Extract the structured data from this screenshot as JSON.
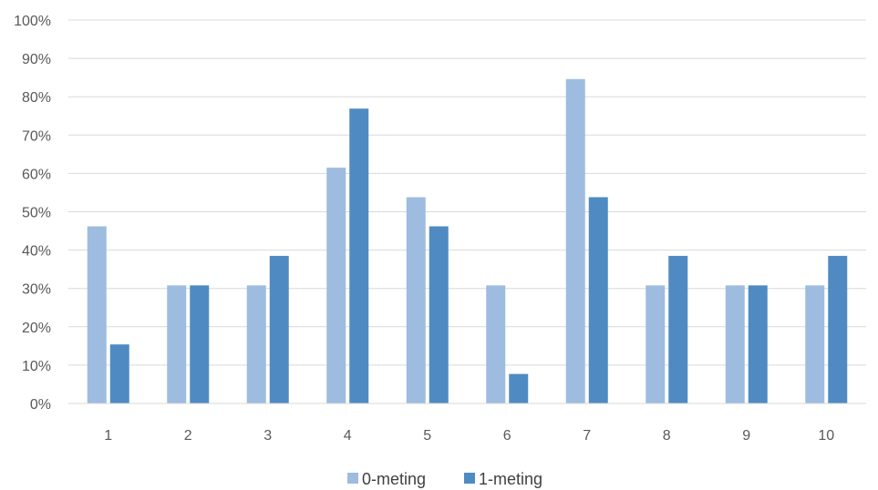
{
  "chart_data": {
    "type": "bar",
    "categories": [
      "1",
      "2",
      "3",
      "4",
      "5",
      "6",
      "7",
      "8",
      "9",
      "10"
    ],
    "series": [
      {
        "name": "0-meting",
        "color": "#9dbce0",
        "values": [
          46.2,
          30.8,
          30.8,
          61.5,
          53.8,
          30.8,
          84.6,
          30.8,
          30.8,
          30.8
        ]
      },
      {
        "name": "1-meting",
        "color": "#4f8bc2",
        "values": [
          15.4,
          30.8,
          38.5,
          76.9,
          46.2,
          7.7,
          53.8,
          38.5,
          30.8,
          38.5
        ]
      }
    ],
    "ylim": [
      0,
      100
    ],
    "yticks": [
      "0%",
      "10%",
      "20%",
      "30%",
      "40%",
      "50%",
      "60%",
      "70%",
      "80%",
      "90%",
      "100%"
    ],
    "grid": true,
    "legend": "bottom"
  }
}
